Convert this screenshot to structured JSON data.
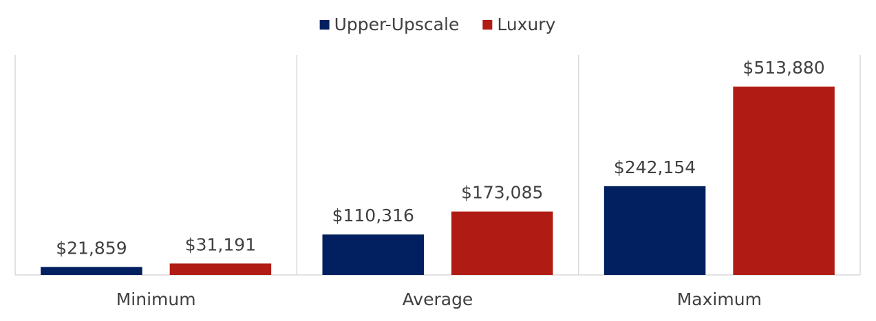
{
  "chart_data": {
    "type": "bar",
    "categories": [
      "Minimum",
      "Average",
      "Maximum"
    ],
    "series": [
      {
        "name": "Upper-Upscale",
        "color": "#02205f",
        "values": [
          21859,
          110316,
          242154
        ],
        "value_labels": [
          "$21,859",
          "$110,316",
          "$242,154"
        ]
      },
      {
        "name": "Luxury",
        "color": "#b01c13",
        "values": [
          31191,
          173085,
          513880
        ],
        "value_labels": [
          "$31,191",
          "$173,085",
          "$513,880"
        ]
      }
    ],
    "ylim": [
      0,
      600000
    ],
    "legend": "top"
  }
}
